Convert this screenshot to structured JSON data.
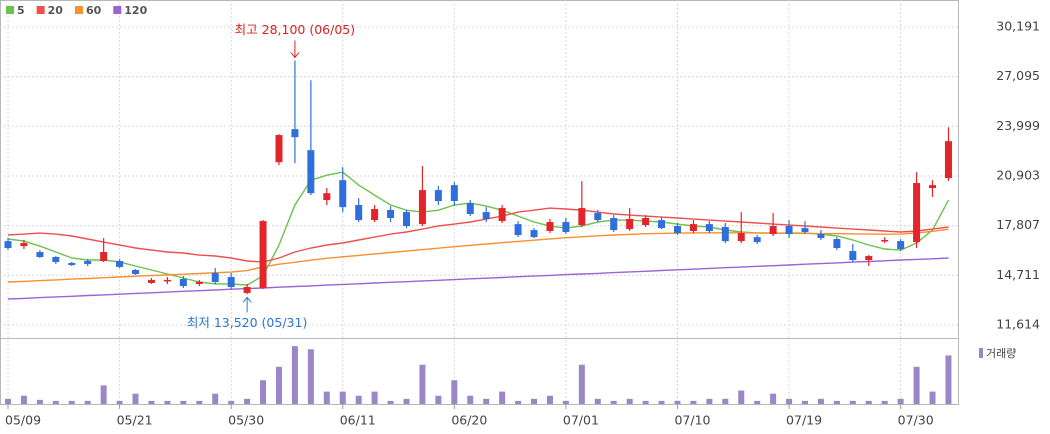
{
  "chart_data": {
    "type": "candlestick",
    "categories": [
      "05/09",
      null,
      null,
      null,
      null,
      null,
      null,
      "05/21",
      null,
      null,
      null,
      null,
      null,
      null,
      "05/30",
      null,
      null,
      null,
      null,
      null,
      null,
      "06/11",
      null,
      null,
      null,
      null,
      null,
      null,
      "06/20",
      null,
      null,
      null,
      null,
      null,
      null,
      "07/01",
      null,
      null,
      null,
      null,
      null,
      null,
      "07/10",
      null,
      null,
      null,
      null,
      null,
      null,
      "07/19",
      null,
      null,
      null,
      null,
      null,
      null,
      "07/30",
      null,
      null,
      null
    ],
    "open": [
      16840,
      16530,
      16160,
      15850,
      15480,
      15600,
      15600,
      15600,
      15040,
      14230,
      14350,
      14480,
      14170,
      14850,
      14600,
      13610,
      13920,
      21760,
      23820,
      22510,
      19400,
      20640,
      19090,
      18150,
      18780,
      18650,
      17900,
      20020,
      20330,
      19210,
      18650,
      18090,
      17900,
      17530,
      17470,
      18030,
      17840,
      18590,
      18280,
      17590,
      17840,
      18150,
      17780,
      17470,
      17900,
      17720,
      16840,
      17090,
      17280,
      17780,
      17650,
      17280,
      16970,
      16220,
      15660,
      16840,
      16840,
      16780,
      20150,
      20770
    ],
    "high": [
      17030,
      16910,
      16280,
      15910,
      15540,
      15720,
      17030,
      15720,
      15100,
      14540,
      14600,
      14670,
      14420,
      15160,
      14850,
      14170,
      18150,
      23510,
      28100,
      26870,
      20150,
      21450,
      19520,
      19090,
      19020,
      18780,
      21520,
      20270,
      20520,
      19400,
      18960,
      19090,
      18090,
      17650,
      18220,
      18280,
      20580,
      18780,
      18460,
      18900,
      18460,
      18340,
      17970,
      18150,
      18090,
      17970,
      18650,
      17220,
      18590,
      18150,
      18090,
      17530,
      17090,
      16660,
      15970,
      17090,
      16970,
      21140,
      20640,
      23940
    ],
    "low": [
      16280,
      16350,
      15790,
      15410,
      15290,
      15290,
      15540,
      15160,
      14730,
      14170,
      14170,
      13920,
      14040,
      14170,
      13860,
      13520,
      13860,
      21580,
      21700,
      19710,
      19090,
      18650,
      18030,
      18030,
      18030,
      17650,
      17780,
      19090,
      19020,
      18400,
      18030,
      17970,
      17090,
      17030,
      17340,
      17280,
      17720,
      18030,
      17410,
      17470,
      17720,
      17590,
      17220,
      17340,
      17340,
      16720,
      16720,
      16660,
      17160,
      17030,
      17280,
      16910,
      16280,
      15540,
      15290,
      16720,
      16220,
      16410,
      19590,
      20580
    ],
    "close": [
      16410,
      16720,
      15850,
      15540,
      15350,
      15410,
      16160,
      15230,
      14790,
      14420,
      14420,
      14040,
      14290,
      14290,
      13980,
      13980,
      18090,
      23450,
      23320,
      19830,
      19830,
      18960,
      18150,
      18840,
      18280,
      17780,
      20020,
      19340,
      19340,
      18530,
      18220,
      18900,
      17220,
      17090,
      18030,
      17410,
      18900,
      18150,
      17530,
      18220,
      18280,
      17650,
      17340,
      17900,
      17470,
      16840,
      17340,
      16780,
      17780,
      17280,
      17410,
      17030,
      16410,
      15660,
      15910,
      16910,
      16350,
      20460,
      20330,
      23070
    ],
    "up_color": "#e3242b",
    "down_color": "#2f6fdc",
    "series": [
      {
        "name": "5",
        "color": "#6cc24a",
        "values": [
          16970,
          16840,
          16530,
          16160,
          15790,
          15660,
          15660,
          15540,
          15290,
          15040,
          14790,
          14540,
          14290,
          14170,
          14170,
          14100,
          14670,
          16600,
          19090,
          20640,
          20950,
          21140,
          20330,
          19710,
          19090,
          18770,
          18650,
          18770,
          19090,
          19210,
          19020,
          18770,
          18400,
          18030,
          17780,
          17650,
          17780,
          18030,
          18150,
          18150,
          18090,
          18030,
          17900,
          17780,
          17720,
          17530,
          17410,
          17340,
          17340,
          17340,
          17340,
          17280,
          17160,
          16910,
          16600,
          16350,
          16280,
          16720,
          17530,
          19400
        ]
      },
      {
        "name": "20",
        "color": "#ee5050",
        "values": [
          17220,
          17280,
          17340,
          17280,
          17160,
          16970,
          16780,
          16600,
          16410,
          16280,
          16160,
          16100,
          15970,
          15910,
          15790,
          15600,
          15540,
          15790,
          16160,
          16410,
          16600,
          16720,
          16910,
          17090,
          17280,
          17410,
          17590,
          17780,
          17900,
          18030,
          18210,
          18400,
          18650,
          18770,
          18900,
          18840,
          18770,
          18650,
          18530,
          18460,
          18400,
          18340,
          18280,
          18210,
          18150,
          18090,
          18030,
          17970,
          17900,
          17840,
          17780,
          17720,
          17650,
          17590,
          17530,
          17470,
          17410,
          17470,
          17590,
          17720
        ]
      },
      {
        "name": "60",
        "color": "#f7902f",
        "values": [
          14290,
          14330,
          14380,
          14420,
          14470,
          14510,
          14560,
          14600,
          14650,
          14690,
          14730,
          14780,
          14820,
          14870,
          14910,
          15000,
          15230,
          15400,
          15520,
          15650,
          15770,
          15860,
          15950,
          16040,
          16130,
          16220,
          16310,
          16400,
          16490,
          16580,
          16660,
          16740,
          16820,
          16900,
          16980,
          17050,
          17110,
          17170,
          17220,
          17260,
          17300,
          17320,
          17340,
          17350,
          17360,
          17360,
          17360,
          17350,
          17340,
          17330,
          17320,
          17310,
          17300,
          17290,
          17280,
          17270,
          17280,
          17350,
          17450,
          17580
        ]
      },
      {
        "name": "120",
        "color": "#9b63d6",
        "values": [
          13230,
          13270,
          13320,
          13360,
          13400,
          13450,
          13490,
          13530,
          13580,
          13620,
          13660,
          13710,
          13750,
          13790,
          13840,
          13880,
          13920,
          13970,
          14010,
          14050,
          14100,
          14140,
          14180,
          14230,
          14270,
          14310,
          14360,
          14400,
          14440,
          14490,
          14530,
          14570,
          14620,
          14660,
          14700,
          14750,
          14790,
          14830,
          14880,
          14920,
          14960,
          15010,
          15050,
          15090,
          15140,
          15180,
          15220,
          15270,
          15310,
          15350,
          15400,
          15440,
          15480,
          15530,
          15570,
          15610,
          15660,
          15700,
          15740,
          15790
        ]
      }
    ],
    "volume": {
      "name": "거래량",
      "color": "#9b86c8",
      "ylim": [
        0,
        60
      ],
      "values": [
        5,
        8,
        4,
        3,
        3,
        3,
        18,
        3,
        10,
        3,
        3,
        3,
        3,
        10,
        3,
        5,
        23,
        36,
        56,
        53,
        12,
        12,
        8,
        12,
        3,
        5,
        38,
        8,
        23,
        8,
        5,
        12,
        3,
        5,
        8,
        3,
        38,
        5,
        3,
        5,
        3,
        3,
        3,
        3,
        5,
        5,
        13,
        3,
        10,
        5,
        3,
        5,
        3,
        3,
        3,
        3,
        5,
        36,
        12,
        47
      ]
    },
    "ylim": [
      10800,
      31560
    ],
    "yticks": [
      {
        "value": 11614,
        "label": "11,614"
      },
      {
        "value": 14711,
        "label": "14,711"
      },
      {
        "value": 17807,
        "label": "17,807"
      },
      {
        "value": 20903,
        "label": "20,903"
      },
      {
        "value": 23999,
        "label": "23,999"
      },
      {
        "value": 27095,
        "label": "27,095"
      },
      {
        "value": 30191,
        "label": "30,191"
      }
    ],
    "grid": true,
    "annotations": [
      {
        "text": "최고 28,100 (06/05)",
        "color": "#e0201f"
      },
      {
        "text": "최저 13,520 (05/31)",
        "color": "#2a78cf"
      }
    ]
  }
}
